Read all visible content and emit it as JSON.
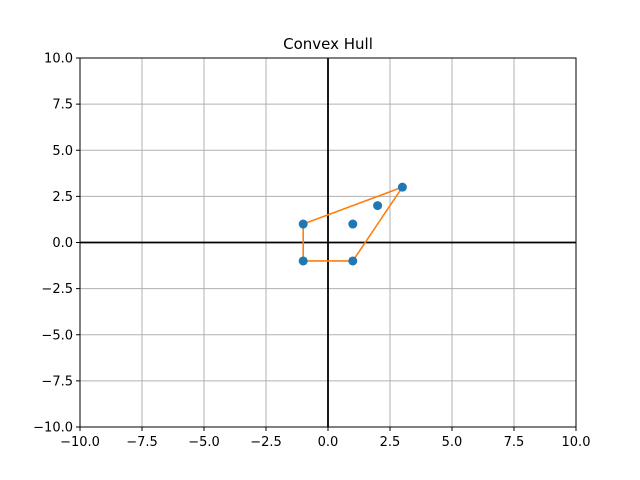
{
  "chart_data": {
    "type": "scatter",
    "title": "Convex Hull",
    "xlabel": "",
    "ylabel": "",
    "xlim": [
      -10,
      10
    ],
    "ylim": [
      -10,
      10
    ],
    "grid": true,
    "xticks": [
      -10,
      -7.5,
      -5,
      -2.5,
      0,
      2.5,
      5,
      7.5,
      10
    ],
    "yticks": [
      -10,
      -7.5,
      -5,
      -2.5,
      0,
      2.5,
      5,
      7.5,
      10
    ],
    "xtick_labels": [
      "−10.0",
      "−7.5",
      "−5.0",
      "−2.5",
      "0.0",
      "2.5",
      "5.0",
      "7.5",
      "10.0"
    ],
    "ytick_labels": [
      "−10.0",
      "−7.5",
      "−5.0",
      "−2.5",
      "0.0",
      "2.5",
      "5.0",
      "7.5",
      "10.0"
    ],
    "points": [
      {
        "x": -1,
        "y": 1
      },
      {
        "x": -1,
        "y": -1
      },
      {
        "x": 1,
        "y": 1
      },
      {
        "x": 1,
        "y": -1
      },
      {
        "x": 2,
        "y": 2
      },
      {
        "x": 3,
        "y": 3
      }
    ],
    "hull": [
      {
        "x": -1,
        "y": -1
      },
      {
        "x": 1,
        "y": -1
      },
      {
        "x": 3,
        "y": 3
      },
      {
        "x": -1,
        "y": 1
      },
      {
        "x": -1,
        "y": -1
      }
    ],
    "colors": {
      "points": "#1f77b4",
      "hull": "#ff7f0e",
      "grid": "#b0b0b0",
      "axes_lines": "#000000"
    }
  }
}
